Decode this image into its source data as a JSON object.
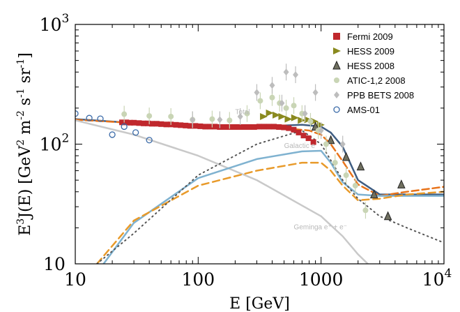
{
  "chart_data": {
    "type": "line",
    "xlabel": "E  [GeV]",
    "ylabel_parts": {
      "a": "E",
      "b": "3",
      "c": "J(E)  [GeV",
      "d": "2",
      "e": " m",
      "f": "-2",
      "g": " s",
      "h": "-1",
      "i": " sr",
      "j": "-1",
      "k": "]"
    },
    "xscale": "log",
    "yscale": "log",
    "xlim": [
      10,
      10000
    ],
    "ylim": [
      10,
      1000
    ],
    "x_ticks": [
      {
        "value": 10,
        "label": "10"
      },
      {
        "value": 100,
        "label": "100"
      },
      {
        "value": 1000,
        "label": "1000"
      }
    ],
    "x_tick_last": {
      "value": 10000,
      "base": "10",
      "exp": "4"
    },
    "y_ticks": [
      {
        "value": 10,
        "base": "10",
        "exp": ""
      },
      {
        "value": 100,
        "base": "10",
        "exp": "2"
      },
      {
        "value": 1000,
        "base": "10",
        "exp": "3"
      }
    ],
    "legend_position": "top-right",
    "legend": [
      {
        "name": "Fermi 2009",
        "marker": "square",
        "color": "#c0282d"
      },
      {
        "name": "HESS 2009",
        "marker": "triangle-right",
        "color": "#8a8a1e"
      },
      {
        "name": "HESS 2008",
        "marker": "triangle-up",
        "color": "#707060"
      },
      {
        "name": "ATIC-1,2 2008",
        "marker": "circle-filled",
        "color": "#c9d5b5"
      },
      {
        "name": "PPB BETS 2008",
        "marker": "diamond",
        "color": "#bdbdbd"
      },
      {
        "name": "AMS-01",
        "marker": "circle-open",
        "color": "#3a6aa8"
      }
    ],
    "annotations": [
      {
        "text": "Total",
        "x": 200,
        "y": 178
      },
      {
        "text": "Galactic e",
        "x": 500,
        "y": 93
      },
      {
        "text": "Geminga e⁺ + e⁻",
        "x": 600,
        "y": 19.5
      }
    ],
    "series": [
      {
        "name": "Fermi 2009",
        "kind": "points",
        "marker": "square",
        "color": "#c0282d",
        "x": [
          24,
          26,
          28,
          30,
          33,
          36,
          39,
          42,
          46,
          50,
          55,
          60,
          66,
          72,
          79,
          86,
          95,
          104,
          114,
          125,
          137,
          150,
          165,
          180,
          198,
          217,
          238,
          261,
          286,
          314,
          344,
          378,
          414,
          454,
          498,
          546,
          599,
          657,
          720,
          790,
          866
        ],
        "y": [
          152,
          152,
          151,
          151,
          150,
          149,
          149,
          148,
          148,
          147,
          146,
          146,
          145,
          144,
          143,
          142,
          142,
          141,
          140,
          140,
          140,
          139,
          139,
          139,
          139,
          139,
          139,
          139,
          139,
          140,
          140,
          140,
          140,
          139,
          138,
          136,
          132,
          125,
          118,
          112,
          104
        ]
      },
      {
        "name": "HESS 2009",
        "kind": "points",
        "marker": "triangle-right",
        "color": "#8a8a1e",
        "x": [
          340,
          380,
          430,
          480,
          540,
          610,
          690,
          780,
          880,
          990
        ],
        "y": [
          170,
          182,
          175,
          170,
          162,
          166,
          158,
          160,
          155,
          145
        ]
      },
      {
        "name": "HESS 2008",
        "kind": "points",
        "marker": "triangle-up",
        "color": "#707060",
        "x": [
          900,
          1200,
          1600,
          2100,
          2700,
          3500,
          4500
        ],
        "y": [
          140,
          108,
          78,
          65,
          38,
          25,
          46
        ]
      },
      {
        "name": "ATIC-1,2 2008",
        "kind": "points",
        "marker": "circle-filled",
        "color": "#c9d5b5",
        "x": [
          25,
          40,
          60,
          90,
          130,
          180,
          250,
          320,
          400,
          460,
          520,
          600,
          700,
          820,
          950,
          1100,
          1300,
          1600,
          1900,
          2300
        ],
        "y": [
          178,
          172,
          170,
          160,
          162,
          158,
          180,
          230,
          245,
          220,
          200,
          210,
          180,
          155,
          130,
          100,
          70,
          55,
          45,
          28
        ]
      },
      {
        "name": "PPB BETS 2008",
        "kind": "points",
        "marker": "diamond",
        "color": "#bdbdbd",
        "x": [
          90,
          150,
          220,
          300,
          400,
          480,
          520,
          620,
          740,
          900,
          1000,
          1500
        ],
        "y": [
          160,
          160,
          170,
          270,
          310,
          220,
          400,
          380,
          180,
          270,
          130,
          100
        ]
      },
      {
        "name": "AMS-01",
        "kind": "points",
        "marker": "circle-open",
        "color": "#3a6aa8",
        "x": [
          10,
          13,
          16,
          20,
          25,
          31,
          40
        ],
        "y": [
          180,
          165,
          163,
          120,
          140,
          125,
          108
        ]
      },
      {
        "name": "",
        "kind": "line",
        "color": "#3f5d82",
        "width": 2.5,
        "dash": "",
        "x": [
          10,
          30,
          100,
          300,
          700,
          1000,
          1200,
          1500,
          2000,
          3000,
          5000,
          10000
        ],
        "y": [
          162,
          150,
          140,
          140,
          145,
          140,
          125,
          95,
          50,
          38,
          38,
          38
        ]
      },
      {
        "name": "",
        "kind": "line",
        "color": "#e8731a",
        "width": 2.5,
        "dash": "10,5",
        "x": [
          10,
          30,
          100,
          300,
          500,
          800,
          1000,
          1200,
          1500,
          2000,
          3000,
          5000,
          10000
        ],
        "y": [
          160,
          150,
          138,
          137,
          136,
          130,
          120,
          100,
          72,
          46,
          37,
          40,
          44
        ]
      },
      {
        "name": "",
        "kind": "line",
        "color": "#c9c9c9",
        "width": 2.5,
        "dash": "",
        "x": [
          10,
          30,
          100,
          300,
          1000,
          1500,
          2000,
          2400
        ],
        "y": [
          158,
          120,
          80,
          50,
          25,
          17,
          12,
          10
        ]
      },
      {
        "name": "",
        "kind": "line",
        "color": "#7fb2d0",
        "width": 2.5,
        "dash": "",
        "x": [
          17,
          30,
          100,
          300,
          700,
          1000,
          1200,
          1500,
          2000,
          3000,
          5000,
          10000
        ],
        "y": [
          10,
          22,
          52,
          75,
          87,
          88,
          70,
          48,
          38,
          37,
          37,
          37
        ]
      },
      {
        "name": "",
        "kind": "line",
        "color": "#e89a2a",
        "width": 2.5,
        "dash": "10,6",
        "x": [
          15,
          30,
          100,
          300,
          700,
          1000,
          1200,
          1500,
          2000,
          3000,
          5000,
          10000
        ],
        "y": [
          10,
          23,
          45,
          60,
          70,
          70,
          60,
          45,
          34,
          35,
          38,
          40
        ]
      },
      {
        "name": "",
        "kind": "line",
        "color": "#555555",
        "width": 2,
        "dash": "1.5,5",
        "x": [
          15,
          30,
          100,
          300,
          700,
          1000,
          1500,
          2000,
          3000,
          5000,
          10000
        ],
        "y": [
          10,
          18,
          55,
          100,
          130,
          100,
          50,
          35,
          25,
          20,
          15
        ]
      }
    ]
  }
}
